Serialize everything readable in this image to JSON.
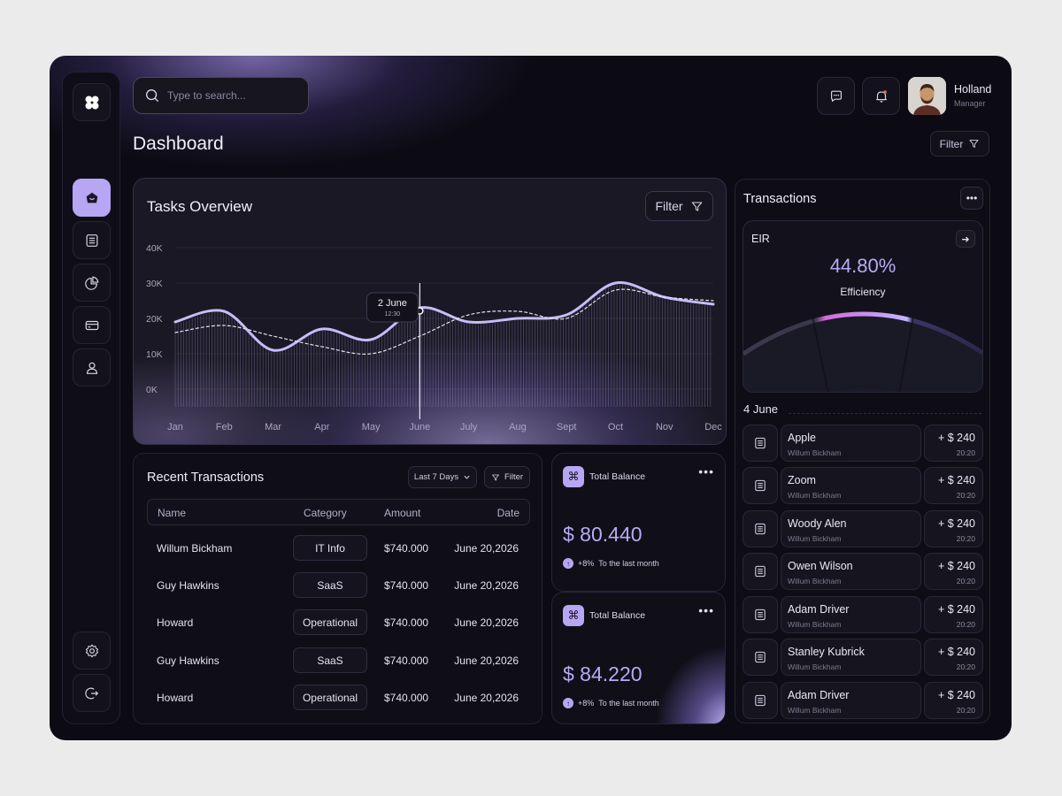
{
  "header": {
    "search_placeholder": "Type to search...",
    "page_title": "Dashboard",
    "user_name": "Holland",
    "user_role": "Manager",
    "filter_label": "Filter"
  },
  "sidebar": {
    "items": [
      {
        "icon": "home-icon",
        "active": true
      },
      {
        "icon": "list-icon",
        "active": false
      },
      {
        "icon": "pie-chart-icon",
        "active": false
      },
      {
        "icon": "card-icon",
        "active": false
      },
      {
        "icon": "user-icon",
        "active": false
      }
    ],
    "bottom": [
      {
        "icon": "settings-icon"
      },
      {
        "icon": "logout-icon"
      }
    ]
  },
  "tasks": {
    "title": "Tasks Overview",
    "filter_label": "Filter",
    "tooltip_date": "2 June",
    "tooltip_time": "12:30"
  },
  "chart_data": {
    "type": "line",
    "categories": [
      "Jan",
      "Feb",
      "Mar",
      "Apr",
      "May",
      "June",
      "July",
      "Aug",
      "Sept",
      "Oct",
      "Nov",
      "Dec"
    ],
    "y_ticks": [
      "40K",
      "30K",
      "20K",
      "10K",
      "0K"
    ],
    "ylim": [
      0,
      40000
    ],
    "grid": true,
    "series": [
      {
        "values": [
          19000,
          22000,
          11000,
          17000,
          14000,
          23000,
          19000,
          20000,
          21000,
          30000,
          26000,
          24000
        ],
        "style": "solid",
        "color": "#c8bcf7"
      },
      {
        "values": [
          16000,
          18000,
          15000,
          12000,
          10000,
          15000,
          21000,
          22000,
          20000,
          28000,
          26000,
          25000
        ],
        "style": "dashed",
        "color": "#e4e0f0"
      }
    ],
    "highlight": {
      "label": "2 June",
      "sub": "12:30",
      "x_index": 5
    }
  },
  "recent": {
    "title": "Recent Transactions",
    "range_label": "Last 7 Days",
    "filter_label": "Filter",
    "columns": [
      "Name",
      "Category",
      "Amount",
      "Date"
    ],
    "rows": [
      {
        "name": "Willum Bickham",
        "category": "IT Info",
        "amount": "$740.000",
        "date": "June 20,2026"
      },
      {
        "name": "Guy Hawkins",
        "category": "SaaS",
        "amount": "$740.000",
        "date": "June 20,2026"
      },
      {
        "name": "Howard",
        "category": "Operational",
        "amount": "$740.000",
        "date": "June 20,2026"
      },
      {
        "name": "Guy Hawkins",
        "category": "SaaS",
        "amount": "$740.000",
        "date": "June 20,2026"
      },
      {
        "name": "Howard",
        "category": "Operational",
        "amount": "$740.000",
        "date": "June 20,2026"
      }
    ]
  },
  "balances": [
    {
      "label": "Total Balance",
      "amount": "$ 80.440",
      "change": "+8%",
      "note": "To the last month"
    },
    {
      "label": "Total Balance",
      "amount": "$ 84.220",
      "change": "+8%",
      "note": "To the last month"
    }
  ],
  "transactions": {
    "title": "Transactions",
    "eir_label": "EIR",
    "eir_value": "44.80%",
    "eir_sub": "Efficiency",
    "date_label": "4 June",
    "items": [
      {
        "name": "Apple",
        "sub": "Willum Bickham",
        "amount": "+ $ 240",
        "time": "20:20"
      },
      {
        "name": "Zoom",
        "sub": "Willum Bickham",
        "amount": "+ $ 240",
        "time": "20:20"
      },
      {
        "name": "Woody Alen",
        "sub": "Willum Bickham",
        "amount": "+ $ 240",
        "time": "20:20"
      },
      {
        "name": "Owen Wilson",
        "sub": "Willum Bickham",
        "amount": "+ $ 240",
        "time": "20:20"
      },
      {
        "name": "Adam Driver",
        "sub": "Willum Bickham",
        "amount": "+ $ 240",
        "time": "20:20"
      },
      {
        "name": "Stanley Kubrick",
        "sub": "Willum Bickham",
        "amount": "+ $ 240",
        "time": "20:20"
      },
      {
        "name": "Adam Driver",
        "sub": "Willum Bickham",
        "amount": "+ $ 240",
        "time": "20:20"
      }
    ]
  },
  "colors": {
    "accent": "#b6a6f3",
    "background": "#0c0b13",
    "panel": "#13121c"
  }
}
